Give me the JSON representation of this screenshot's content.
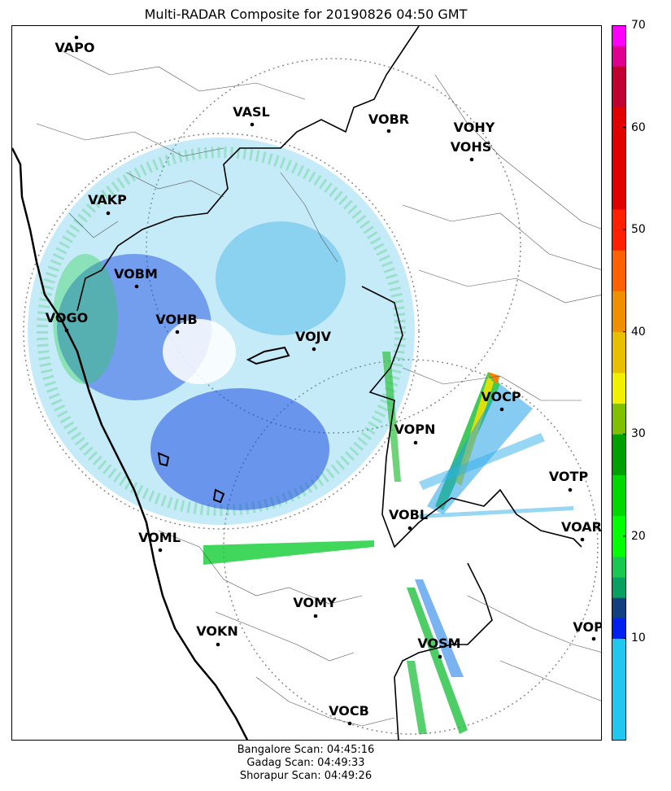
{
  "title": "Multi-RADAR Composite for 20190826 04:50 GMT",
  "stations": [
    {
      "code": "VAPO"
    },
    {
      "code": "VASL"
    },
    {
      "code": "VOBR"
    },
    {
      "code": "VOHY"
    },
    {
      "code": "VOHS"
    },
    {
      "code": "VAKP"
    },
    {
      "code": "VOBM"
    },
    {
      "code": "VOGO"
    },
    {
      "code": "VOHB"
    },
    {
      "code": "VOJV"
    },
    {
      "code": "VOCP"
    },
    {
      "code": "VOPN"
    },
    {
      "code": "VOTP"
    },
    {
      "code": "VOBL"
    },
    {
      "code": "VOAR"
    },
    {
      "code": "VOML"
    },
    {
      "code": "VOMY"
    },
    {
      "code": "VOKN"
    },
    {
      "code": "VOSM"
    },
    {
      "code": "VOPC"
    },
    {
      "code": "VOCB"
    }
  ],
  "colorbar": {
    "min": 0,
    "max": 70,
    "ticks": [
      "10",
      "20",
      "30",
      "40",
      "50",
      "60",
      "70"
    ],
    "bands": [
      {
        "from": 0,
        "to": 10,
        "color": "#20c8f0"
      },
      {
        "from": 10,
        "to": 12,
        "color": "#0020f0"
      },
      {
        "from": 12,
        "to": 14,
        "color": "#104080"
      },
      {
        "from": 14,
        "to": 16,
        "color": "#08a060"
      },
      {
        "from": 16,
        "to": 18,
        "color": "#18c850"
      },
      {
        "from": 18,
        "to": 22,
        "color": "#00ff00"
      },
      {
        "from": 22,
        "to": 26,
        "color": "#00d800"
      },
      {
        "from": 26,
        "to": 30,
        "color": "#00a000"
      },
      {
        "from": 30,
        "to": 33,
        "color": "#80c000"
      },
      {
        "from": 33,
        "to": 36,
        "color": "#f0f000"
      },
      {
        "from": 36,
        "to": 40,
        "color": "#e8c000"
      },
      {
        "from": 40,
        "to": 44,
        "color": "#f09000"
      },
      {
        "from": 44,
        "to": 48,
        "color": "#ff6000"
      },
      {
        "from": 48,
        "to": 52,
        "color": "#ff2000"
      },
      {
        "from": 52,
        "to": 62,
        "color": "#e00000"
      },
      {
        "from": 62,
        "to": 66,
        "color": "#c00030"
      },
      {
        "from": 66,
        "to": 68,
        "color": "#e00090"
      },
      {
        "from": 68,
        "to": 70,
        "color": "#ff00ff"
      }
    ]
  },
  "scans": [
    "Bangalore Scan: 04:45:16",
    "Gadag Scan: 04:49:33",
    "Shorapur Scan: 04:49:26"
  ]
}
